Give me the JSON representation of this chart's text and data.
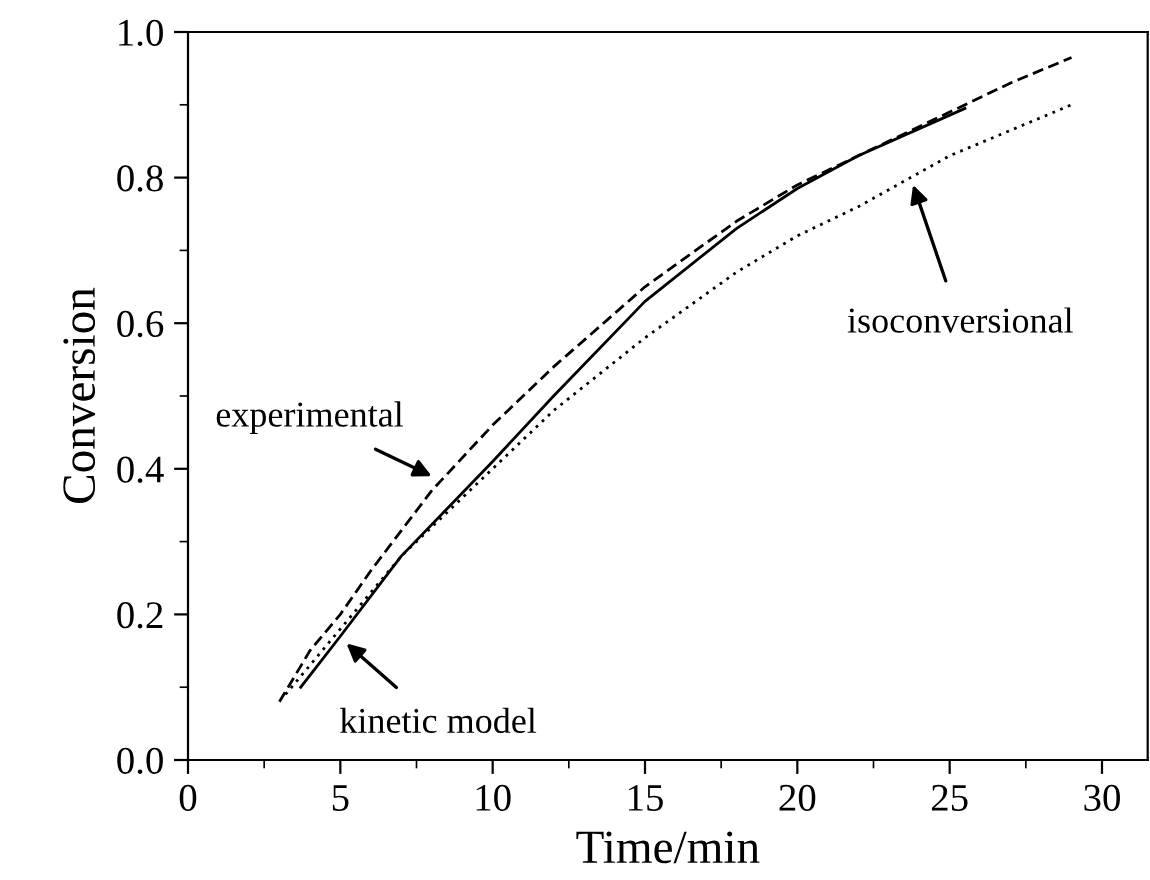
{
  "chart_data": {
    "type": "line",
    "xlabel": "Time/min",
    "ylabel": "Conversion",
    "xlim": [
      0,
      31.5
    ],
    "ylim": [
      0,
      1.0
    ],
    "xticks": [
      0,
      5,
      10,
      15,
      20,
      25,
      30
    ],
    "yticks": [
      {
        "value": 0,
        "label": "0.0"
      },
      0.2,
      0.4,
      0.6,
      0.8,
      {
        "value": 1,
        "label": "1.0"
      }
    ],
    "grid": false,
    "legend": false,
    "series": [
      {
        "color": "#000000",
        "line_style": "dashed",
        "x": [
          3,
          4,
          5,
          6,
          8,
          10,
          12,
          15,
          18,
          20,
          22,
          25,
          27,
          29
        ],
        "values": [
          0.08,
          0.15,
          0.2,
          0.26,
          0.37,
          0.46,
          0.54,
          0.65,
          0.74,
          0.79,
          0.83,
          0.89,
          0.93,
          0.965
        ]
      },
      {
        "color": "#000000",
        "line_style": "solid",
        "x": [
          3.7,
          5,
          7,
          10,
          12,
          15,
          18,
          20,
          22,
          25.5
        ],
        "values": [
          0.1,
          0.17,
          0.28,
          0.41,
          0.5,
          0.63,
          0.73,
          0.785,
          0.83,
          0.895
        ]
      },
      {
        "color": "#000000",
        "line_style": "dotted",
        "x": [
          3.2,
          5,
          7,
          10,
          12,
          15,
          18,
          20,
          22,
          25,
          29
        ],
        "values": [
          0.09,
          0.18,
          0.28,
          0.4,
          0.48,
          0.58,
          0.67,
          0.72,
          0.76,
          0.83,
          0.9
        ]
      }
    ],
    "annotations": [
      {
        "text": "experimental",
        "x": 8,
        "y": 0.39
      },
      {
        "text": "kinetic model",
        "x": 5.2,
        "y": 0.16
      },
      {
        "text": "isoconversional",
        "x": 23.8,
        "y": 0.79
      }
    ]
  }
}
